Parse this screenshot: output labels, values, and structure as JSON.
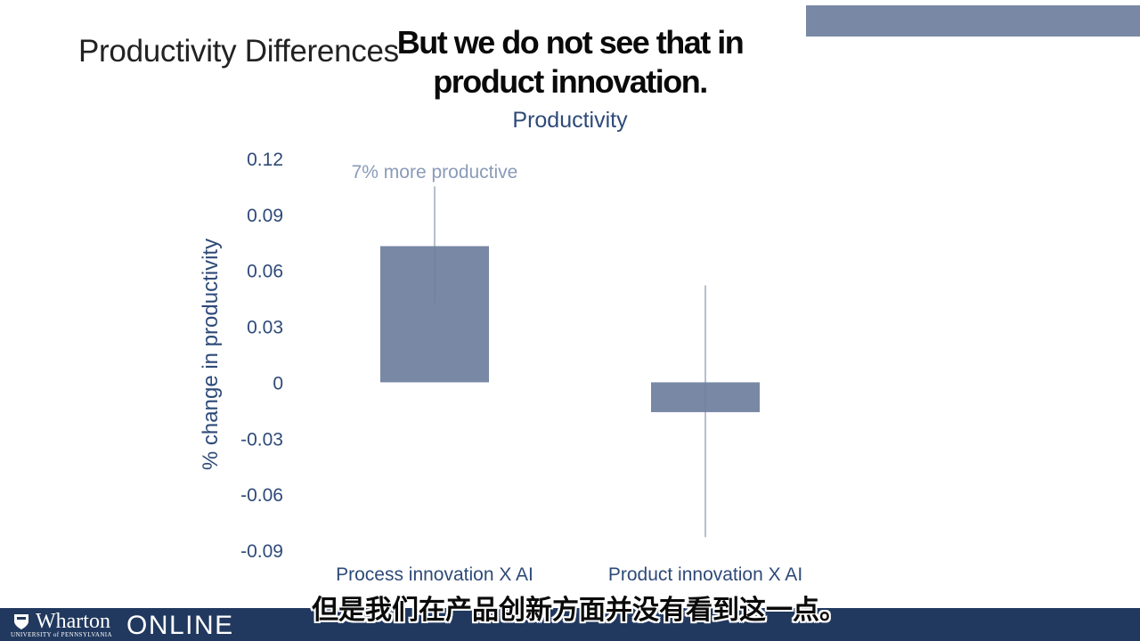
{
  "slide": {
    "title": "Productivity Differences"
  },
  "subtitles": {
    "english": "But we do not see that in product innovation.",
    "chinese": "但是我们在产品创新方面并没有看到这一点。"
  },
  "branding": {
    "logo_name": "Wharton",
    "logo_university": "UNIVERSITY of PENNSYLVANIA",
    "logo_suffix": "ONLINE",
    "shield_icon": "penn-shield-icon"
  },
  "colors": {
    "bar": "#7888a5",
    "axis_text": "#2e4a78",
    "annotation": "#8a9bb8",
    "bottom_bar": "#22395f",
    "banner": "#7888a5"
  },
  "chart_data": {
    "type": "bar",
    "title": "Productivity",
    "ylabel": "% change in productivity",
    "xlabel": "",
    "categories": [
      "Process innovation X AI",
      "Product innovation X AI"
    ],
    "values": [
      0.073,
      -0.016
    ],
    "error_bars": [
      [
        0.042,
        0.105
      ],
      [
        -0.083,
        0.052
      ]
    ],
    "ylim": [
      -0.09,
      0.12
    ],
    "yticks": [
      0.12,
      0.09,
      0.06,
      0.03,
      0,
      -0.03,
      -0.06,
      -0.09
    ],
    "ytick_labels": [
      "0.12",
      "0.09",
      "0.06",
      "0.03",
      "0",
      "-0.03",
      "-0.06",
      "-0.09"
    ],
    "annotations": [
      {
        "text": "7% more productive",
        "category": "Process innovation X AI"
      }
    ],
    "grid": false,
    "legend": "none"
  }
}
